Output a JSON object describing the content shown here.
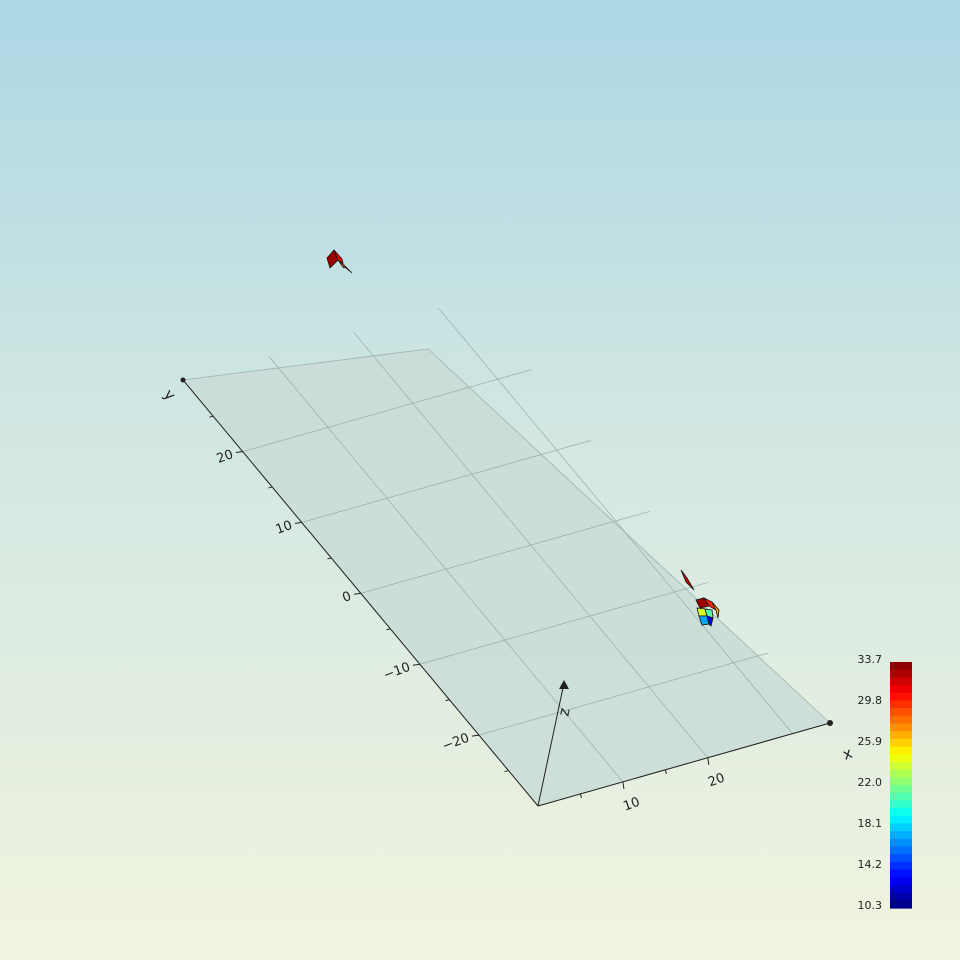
{
  "chart_data": {
    "type": "surface3d",
    "title": "",
    "axes": {
      "x": {
        "label": "x",
        "ticks": [
          10,
          20
        ]
      },
      "y": {
        "label": "y",
        "ticks": [
          -20,
          -10,
          0,
          10,
          20
        ]
      },
      "z": {
        "label": "z"
      }
    },
    "colorbar": {
      "min": 10.3,
      "max": 33.7,
      "labels": [
        "33.7",
        "29.8",
        "25.9",
        "22.0",
        "18.1",
        "14.2",
        "10.3"
      ],
      "colormap": "jet"
    },
    "surfaces": [
      {
        "name": "",
        "color_values": [
          33.0,
          31.0,
          29.0
        ]
      },
      {
        "name": "",
        "color_values": [
          32.0
        ]
      },
      {
        "name": "",
        "color_values": [
          33.0,
          30.0,
          27.0,
          24.0,
          21.0,
          17.0,
          13.0
        ]
      }
    ],
    "grid": true,
    "background": {
      "top": "#acd7e5",
      "bottom": "#f1f4df"
    }
  }
}
